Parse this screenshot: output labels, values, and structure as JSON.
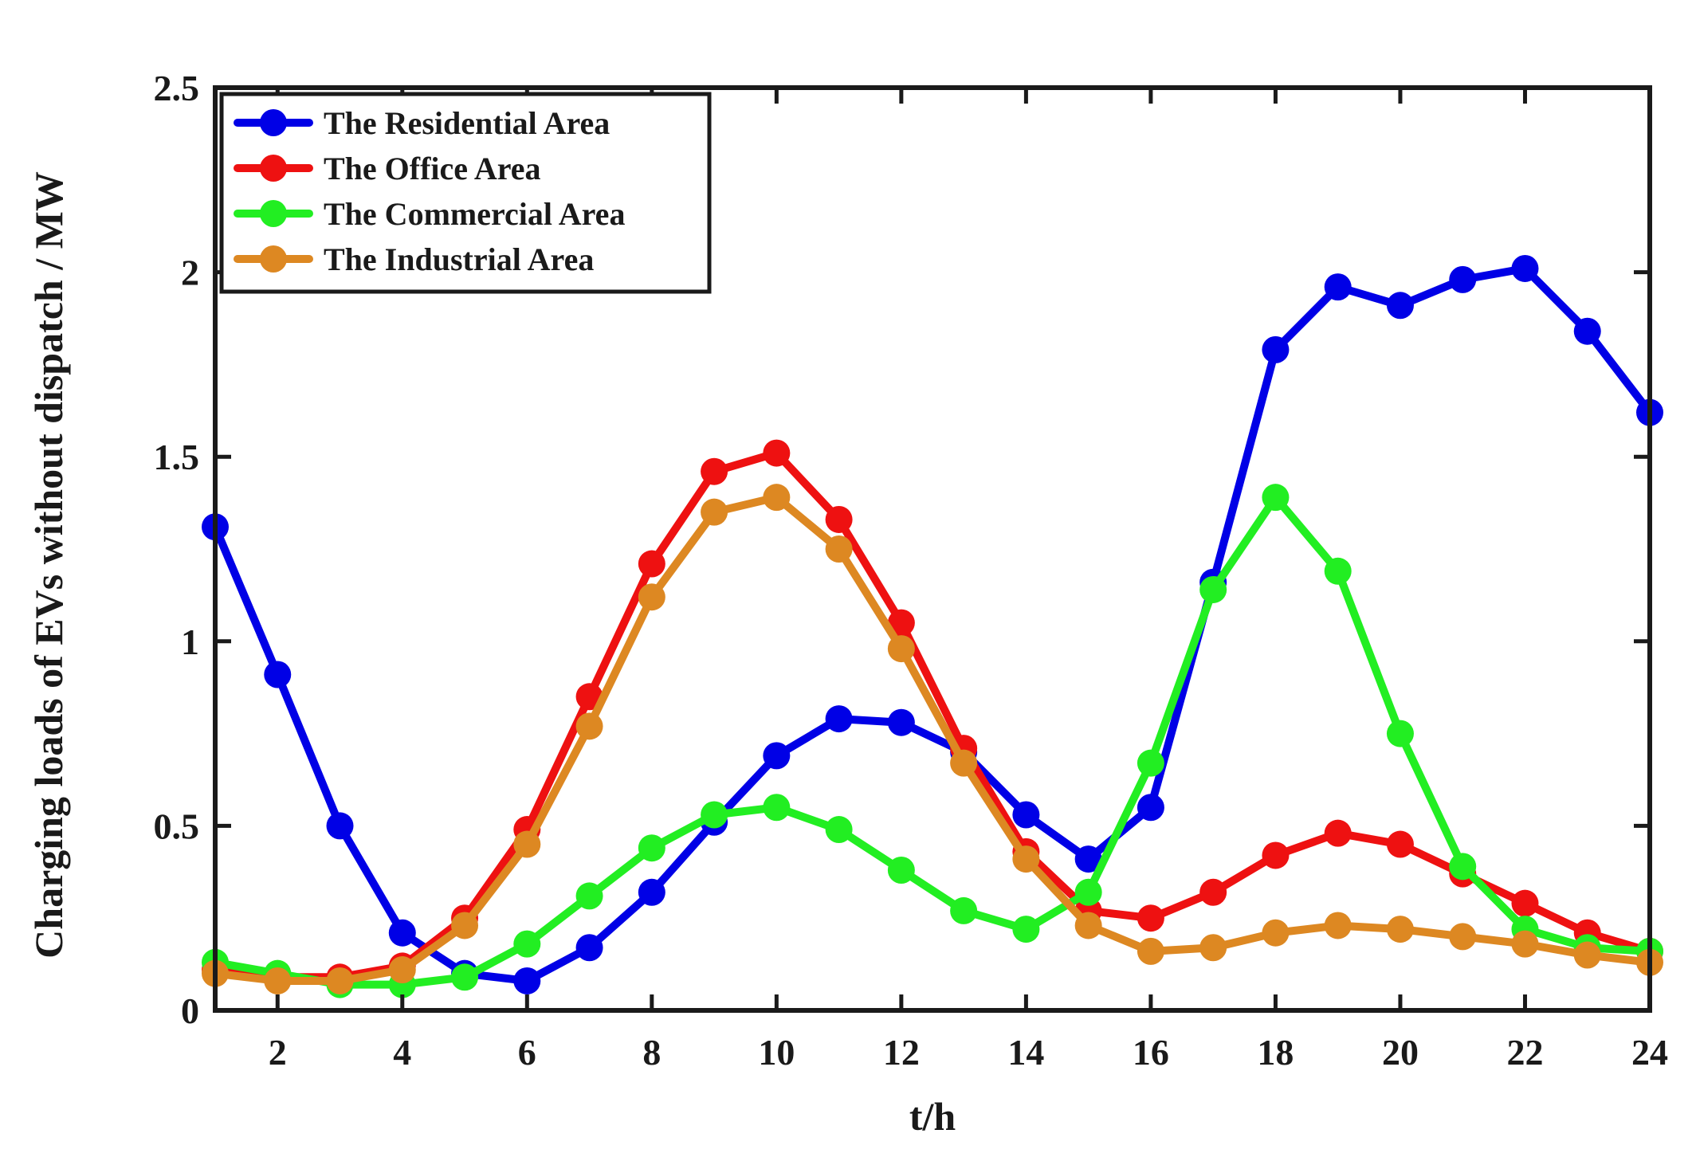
{
  "chart_data": {
    "type": "line",
    "title": "",
    "xlabel": "t/h",
    "ylabel": "Charging loads of EVs without dispatch / MW",
    "xlim": [
      1,
      24
    ],
    "ylim": [
      0,
      2.5
    ],
    "xticks": [
      2,
      4,
      6,
      8,
      10,
      12,
      14,
      16,
      18,
      20,
      22,
      24
    ],
    "yticks": [
      0,
      0.5,
      1,
      1.5,
      2,
      2.5
    ],
    "ytick_labels": [
      "0",
      "0.5",
      "1",
      "1.5",
      "2",
      "2.5"
    ],
    "grid": false,
    "legend_position": "top-left",
    "x": [
      1,
      2,
      3,
      4,
      5,
      6,
      7,
      8,
      9,
      10,
      11,
      12,
      13,
      14,
      15,
      16,
      17,
      18,
      19,
      20,
      21,
      22,
      23,
      24
    ],
    "series": [
      {
        "name": "The Residential Area",
        "color": "#0000e6",
        "values": [
          1.31,
          0.91,
          0.5,
          0.21,
          0.1,
          0.08,
          0.17,
          0.32,
          0.51,
          0.69,
          0.79,
          0.78,
          0.7,
          0.53,
          0.41,
          0.55,
          1.16,
          1.79,
          1.96,
          1.91,
          1.98,
          2.01,
          1.84,
          1.62
        ]
      },
      {
        "name": "The Office Area",
        "color": "#ee1111",
        "values": [
          0.11,
          0.09,
          0.09,
          0.12,
          0.25,
          0.49,
          0.85,
          1.21,
          1.46,
          1.51,
          1.33,
          1.05,
          0.71,
          0.43,
          0.27,
          0.25,
          0.32,
          0.42,
          0.48,
          0.45,
          0.37,
          0.29,
          0.21,
          0.16
        ]
      },
      {
        "name": "The Commercial Area",
        "color": "#22ee22",
        "values": [
          0.13,
          0.1,
          0.07,
          0.07,
          0.09,
          0.18,
          0.31,
          0.44,
          0.53,
          0.55,
          0.49,
          0.38,
          0.27,
          0.22,
          0.32,
          0.67,
          1.14,
          1.39,
          1.19,
          0.75,
          0.39,
          0.22,
          0.17,
          0.16
        ]
      },
      {
        "name": "The Industrial Area",
        "color": "#dd8822",
        "values": [
          0.1,
          0.08,
          0.08,
          0.11,
          0.23,
          0.45,
          0.77,
          1.12,
          1.35,
          1.39,
          1.25,
          0.98,
          0.67,
          0.41,
          0.23,
          0.16,
          0.17,
          0.21,
          0.23,
          0.22,
          0.2,
          0.18,
          0.15,
          0.13
        ]
      }
    ]
  }
}
